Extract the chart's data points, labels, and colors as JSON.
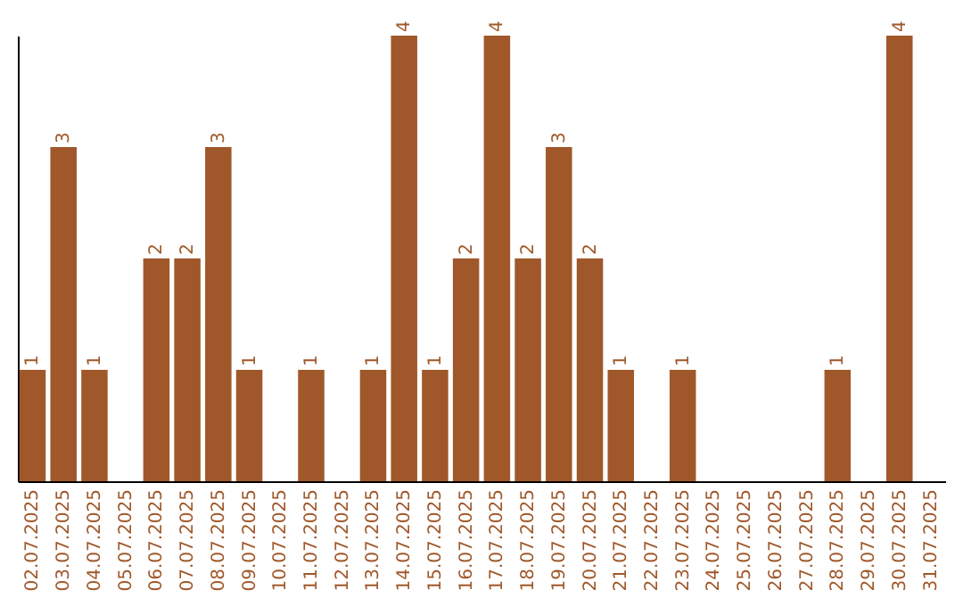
{
  "chart_data": {
    "type": "bar",
    "categories": [
      "02.07.2025",
      "03.07.2025",
      "04.07.2025",
      "05.07.2025",
      "06.07.2025",
      "07.07.2025",
      "08.07.2025",
      "09.07.2025",
      "10.07.2025",
      "11.07.2025",
      "12.07.2025",
      "13.07.2025",
      "14.07.2025",
      "15.07.2025",
      "16.07.2025",
      "17.07.2025",
      "18.07.2025",
      "19.07.2025",
      "20.07.2025",
      "21.07.2025",
      "22.07.2025",
      "23.07.2025",
      "24.07.2025",
      "25.07.2025",
      "26.07.2025",
      "27.07.2025",
      "28.07.2025",
      "29.07.2025",
      "30.07.2025",
      "31.07.2025"
    ],
    "values": [
      1,
      3,
      1,
      0,
      2,
      2,
      3,
      1,
      0,
      1,
      0,
      1,
      4,
      1,
      2,
      4,
      2,
      3,
      2,
      1,
      0,
      1,
      0,
      0,
      0,
      0,
      1,
      0,
      4,
      0
    ],
    "value_labels": [
      "1",
      "3",
      "1",
      null,
      "2",
      "2",
      "3",
      "1",
      null,
      "1",
      null,
      "1",
      "4",
      "1",
      "2",
      "4",
      "2",
      "3",
      "2",
      "1",
      null,
      "1",
      null,
      null,
      null,
      null,
      "1",
      null,
      "4",
      null
    ],
    "color": "#a0582a",
    "tick_labels": "x"
  }
}
